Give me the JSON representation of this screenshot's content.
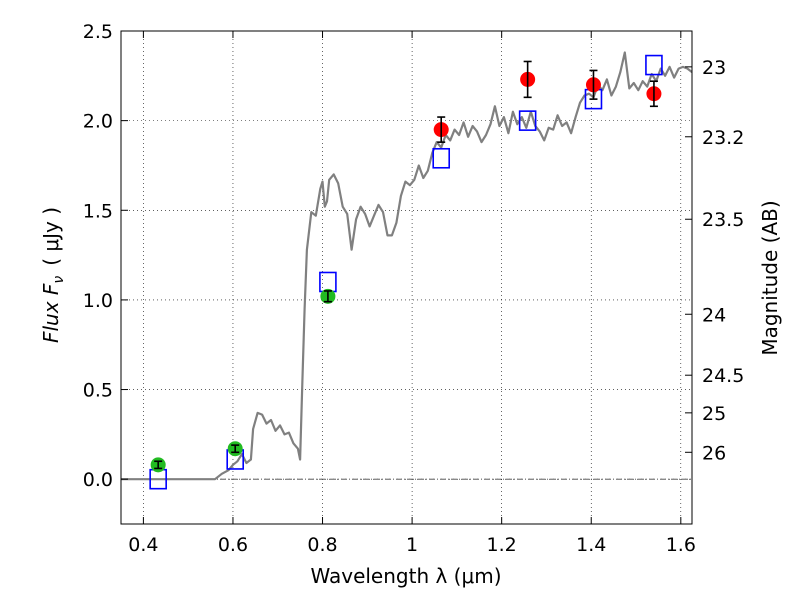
{
  "chart_data": {
    "type": "scatter",
    "xlabel": "Wavelength  λ (μm)",
    "ylabel": "Flux  F",
    "ylabel_sub": "ν",
    "ylabel_unit": "( μJy )",
    "y2label": "Magnitude (AB)",
    "xlim": [
      0.35,
      1.625
    ],
    "ylim": [
      -0.25,
      2.5
    ],
    "grid": true,
    "x_ticks": [
      {
        "value": 0.4,
        "label": "0.4"
      },
      {
        "value": 0.6,
        "label": "0.6"
      },
      {
        "value": 0.8,
        "label": "0.8"
      },
      {
        "value": 1.0,
        "label": "1"
      },
      {
        "value": 1.2,
        "label": "1.2"
      },
      {
        "value": 1.4,
        "label": "1.4"
      },
      {
        "value": 1.6,
        "label": "1.6"
      }
    ],
    "y_ticks": [
      {
        "value": 0.0,
        "label": "0.0"
      },
      {
        "value": 0.5,
        "label": "0.5"
      },
      {
        "value": 1.0,
        "label": "1.0"
      },
      {
        "value": 1.5,
        "label": "1.5"
      },
      {
        "value": 2.0,
        "label": "2.0"
      },
      {
        "value": 2.5,
        "label": "2.5"
      }
    ],
    "y2_ticks": [
      {
        "flux": 2.3,
        "label": "23"
      },
      {
        "flux": 1.91,
        "label": "23.2"
      },
      {
        "flux": 1.45,
        "label": "23.5"
      },
      {
        "flux": 0.92,
        "label": "24"
      },
      {
        "flux": 0.58,
        "label": "24.5"
      },
      {
        "flux": 0.37,
        "label": "25"
      },
      {
        "flux": 0.15,
        "label": "26"
      }
    ],
    "zero_line": 0.0,
    "series": [
      {
        "kind": "model_line",
        "color": "#808080",
        "points": [
          [
            0.35,
            0.0
          ],
          [
            0.45,
            0.0
          ],
          [
            0.56,
            0.0
          ],
          [
            0.575,
            0.03
          ],
          [
            0.59,
            0.05
          ],
          [
            0.6,
            0.08
          ],
          [
            0.61,
            0.1
          ],
          [
            0.62,
            0.14
          ],
          [
            0.63,
            0.09
          ],
          [
            0.64,
            0.11
          ],
          [
            0.645,
            0.28
          ],
          [
            0.655,
            0.37
          ],
          [
            0.665,
            0.36
          ],
          [
            0.675,
            0.31
          ],
          [
            0.685,
            0.33
          ],
          [
            0.695,
            0.27
          ],
          [
            0.705,
            0.3
          ],
          [
            0.715,
            0.25
          ],
          [
            0.725,
            0.26
          ],
          [
            0.735,
            0.2
          ],
          [
            0.745,
            0.17
          ],
          [
            0.75,
            0.11
          ],
          [
            0.755,
            0.55
          ],
          [
            0.76,
            0.95
          ],
          [
            0.765,
            1.28
          ],
          [
            0.775,
            1.49
          ],
          [
            0.785,
            1.47
          ],
          [
            0.795,
            1.62
          ],
          [
            0.8,
            1.66
          ],
          [
            0.805,
            1.52
          ],
          [
            0.81,
            1.55
          ],
          [
            0.815,
            1.67
          ],
          [
            0.825,
            1.7
          ],
          [
            0.835,
            1.65
          ],
          [
            0.845,
            1.52
          ],
          [
            0.855,
            1.48
          ],
          [
            0.865,
            1.28
          ],
          [
            0.875,
            1.45
          ],
          [
            0.885,
            1.52
          ],
          [
            0.895,
            1.48
          ],
          [
            0.905,
            1.41
          ],
          [
            0.915,
            1.47
          ],
          [
            0.925,
            1.53
          ],
          [
            0.935,
            1.49
          ],
          [
            0.945,
            1.36
          ],
          [
            0.955,
            1.36
          ],
          [
            0.965,
            1.43
          ],
          [
            0.975,
            1.58
          ],
          [
            0.985,
            1.66
          ],
          [
            0.995,
            1.64
          ],
          [
            1.005,
            1.67
          ],
          [
            1.015,
            1.75
          ],
          [
            1.025,
            1.68
          ],
          [
            1.035,
            1.72
          ],
          [
            1.045,
            1.82
          ],
          [
            1.055,
            1.88
          ],
          [
            1.065,
            1.85
          ],
          [
            1.075,
            1.92
          ],
          [
            1.085,
            1.89
          ],
          [
            1.095,
            1.95
          ],
          [
            1.105,
            1.92
          ],
          [
            1.115,
            1.99
          ],
          [
            1.125,
            1.91
          ],
          [
            1.135,
            1.97
          ],
          [
            1.145,
            1.94
          ],
          [
            1.155,
            1.88
          ],
          [
            1.165,
            1.92
          ],
          [
            1.175,
            1.98
          ],
          [
            1.185,
            2.08
          ],
          [
            1.195,
            1.97
          ],
          [
            1.205,
            2.02
          ],
          [
            1.215,
            1.93
          ],
          [
            1.225,
            2.05
          ],
          [
            1.235,
            1.98
          ],
          [
            1.245,
            2.02
          ],
          [
            1.255,
            1.96
          ],
          [
            1.265,
            2.05
          ],
          [
            1.275,
            1.97
          ],
          [
            1.285,
            1.94
          ],
          [
            1.295,
            1.89
          ],
          [
            1.305,
            1.96
          ],
          [
            1.315,
            1.95
          ],
          [
            1.325,
            2.03
          ],
          [
            1.335,
            1.97
          ],
          [
            1.345,
            1.99
          ],
          [
            1.355,
            1.93
          ],
          [
            1.365,
            2.02
          ],
          [
            1.375,
            2.1
          ],
          [
            1.385,
            2.14
          ],
          [
            1.395,
            2.15
          ],
          [
            1.405,
            2.13
          ],
          [
            1.415,
            2.2
          ],
          [
            1.425,
            2.17
          ],
          [
            1.435,
            2.23
          ],
          [
            1.445,
            2.14
          ],
          [
            1.455,
            2.19
          ],
          [
            1.465,
            2.27
          ],
          [
            1.475,
            2.38
          ],
          [
            1.485,
            2.18
          ],
          [
            1.495,
            2.21
          ],
          [
            1.505,
            2.17
          ],
          [
            1.515,
            2.22
          ],
          [
            1.525,
            2.19
          ],
          [
            1.535,
            2.26
          ],
          [
            1.545,
            2.22
          ],
          [
            1.555,
            2.29
          ],
          [
            1.565,
            2.25
          ],
          [
            1.575,
            2.3
          ],
          [
            1.585,
            2.24
          ],
          [
            1.595,
            2.29
          ],
          [
            1.605,
            2.3
          ],
          [
            1.615,
            2.29
          ],
          [
            1.625,
            2.27
          ]
        ]
      },
      {
        "kind": "model_box",
        "color": "#0000ff",
        "points": [
          [
            0.433,
            0.0
          ],
          [
            0.605,
            0.11
          ],
          [
            0.812,
            1.1
          ],
          [
            1.065,
            1.79
          ],
          [
            1.258,
            2.0
          ],
          [
            1.405,
            2.12
          ],
          [
            1.54,
            2.31
          ]
        ]
      },
      {
        "kind": "observed",
        "color": "#22bb22",
        "points": [
          {
            "x": 0.433,
            "y": 0.08,
            "err": 0.02
          },
          {
            "x": 0.605,
            "y": 0.17,
            "err": 0.02
          },
          {
            "x": 0.812,
            "y": 1.02,
            "err": 0.03
          }
        ]
      },
      {
        "kind": "observed",
        "color": "#ff0000",
        "points": [
          {
            "x": 1.065,
            "y": 1.95,
            "err": 0.07
          },
          {
            "x": 1.258,
            "y": 2.23,
            "err": 0.1
          },
          {
            "x": 1.405,
            "y": 2.2,
            "err": 0.08
          },
          {
            "x": 1.54,
            "y": 2.15,
            "err": 0.07
          }
        ]
      }
    ]
  }
}
